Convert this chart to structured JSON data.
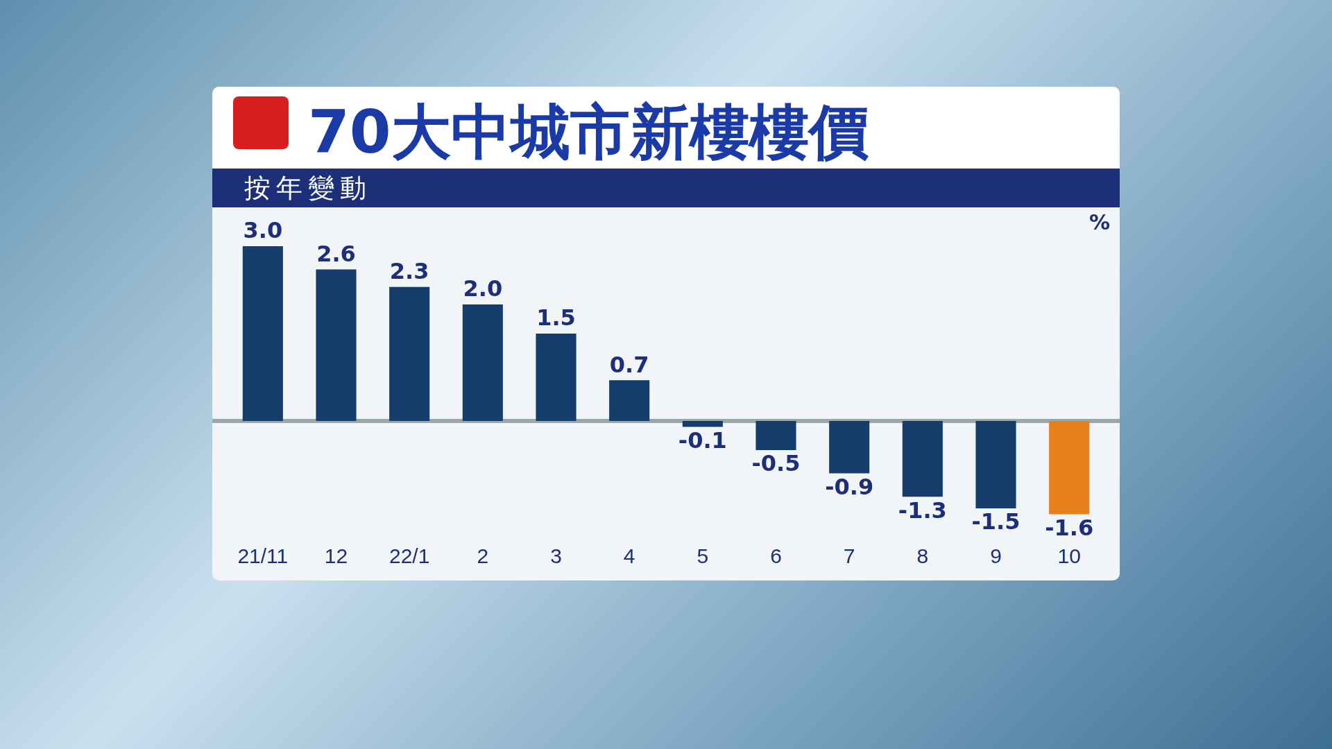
{
  "chart_data": {
    "type": "bar",
    "title": "70大中城市新樓樓價",
    "subtitle": "按年變動",
    "ylabel": "%",
    "categories": [
      "21/11",
      "12",
      "22/1",
      "2",
      "3",
      "4",
      "5",
      "6",
      "7",
      "8",
      "9",
      "10"
    ],
    "values": [
      3.0,
      2.6,
      2.3,
      2.0,
      1.5,
      0.7,
      -0.1,
      -0.5,
      -0.9,
      -1.3,
      -1.5,
      -1.6
    ],
    "colors": [
      "#143d6b",
      "#143d6b",
      "#143d6b",
      "#143d6b",
      "#143d6b",
      "#143d6b",
      "#143d6b",
      "#143d6b",
      "#143d6b",
      "#143d6b",
      "#143d6b",
      "#e8801a"
    ],
    "value_labels": [
      "3.0",
      "2.6",
      "2.3",
      "2.0",
      "1.5",
      "0.7",
      "-0.1",
      "-0.5",
      "-0.9",
      "-1.3",
      "-1.5",
      "-1.6"
    ],
    "grid": false,
    "legend": false
  }
}
